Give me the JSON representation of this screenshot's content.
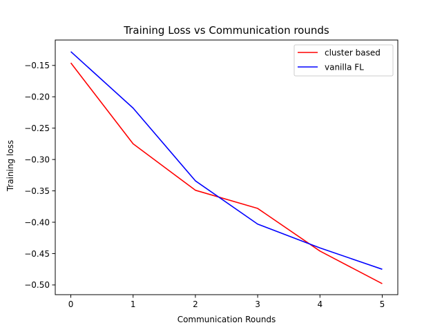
{
  "chart_data": {
    "type": "line",
    "title": "Training Loss vs Communication rounds",
    "xlabel": "Communication Rounds",
    "ylabel": "Training loss",
    "x": [
      0,
      1,
      2,
      3,
      4,
      5
    ],
    "xlim": [
      -0.25,
      5.25
    ],
    "ylim": [
      -0.5155,
      -0.1095
    ],
    "xticks": [
      0,
      1,
      2,
      3,
      4,
      5
    ],
    "xtick_labels": [
      "0",
      "1",
      "2",
      "3",
      "4",
      "5"
    ],
    "yticks": [
      -0.15,
      -0.2,
      -0.25,
      -0.3,
      -0.35,
      -0.4,
      -0.45,
      -0.5
    ],
    "ytick_labels": [
      "−0.15",
      "−0.20",
      "−0.25",
      "−0.30",
      "−0.35",
      "−0.40",
      "−0.45",
      "−0.50"
    ],
    "grid": false,
    "legend_position": "top-right",
    "series": [
      {
        "name": "cluster based",
        "color": "#ff0000",
        "values": [
          -0.146,
          -0.275,
          -0.349,
          -0.378,
          -0.446,
          -0.498
        ]
      },
      {
        "name": "vanilla FL",
        "color": "#0000ff",
        "values": [
          -0.128,
          -0.218,
          -0.334,
          -0.403,
          -0.441,
          -0.475
        ]
      }
    ]
  }
}
